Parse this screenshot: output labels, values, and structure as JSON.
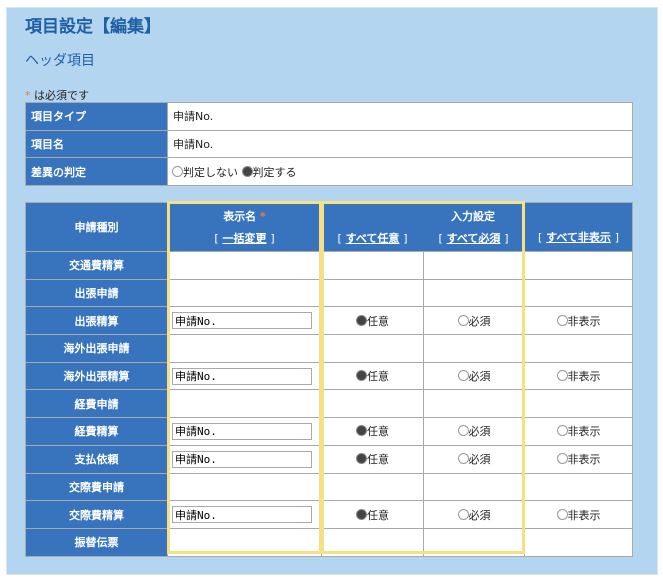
{
  "page_title": "項目設定【編集】",
  "section_title": "ヘッダ項目",
  "required_note": {
    "mark": "*",
    "text": "は必須です"
  },
  "header_fields": [
    {
      "label": "項目タイプ",
      "value": "申請No."
    },
    {
      "label": "項目名",
      "value": "申請No."
    },
    {
      "label": "差異の判定",
      "options": [
        {
          "label": "判定しない",
          "selected": false
        },
        {
          "label": "判定する",
          "selected": true
        }
      ]
    }
  ],
  "grid": {
    "col_type": "申請種別",
    "col_display": "表示名",
    "col_display_required": "*",
    "bulk_change": "一括変更",
    "col_input": "入力設定",
    "all_optional": "すべて任意",
    "all_required": "すべて必須",
    "all_hidden": "すべて非表示",
    "bracket_open": "[",
    "bracket_close": "]",
    "opt_optional": "任意",
    "opt_required": "必須",
    "opt_hidden": "非表示",
    "rows": [
      {
        "type": "交通費精算"
      },
      {
        "type": "出張申請"
      },
      {
        "type": "出張精算",
        "display": "申請No.",
        "setting": "任意"
      },
      {
        "type": "海外出張申請"
      },
      {
        "type": "海外出張精算",
        "display": "申請No.",
        "setting": "任意"
      },
      {
        "type": "経費申請"
      },
      {
        "type": "経費精算",
        "display": "申請No.",
        "setting": "任意"
      },
      {
        "type": "支払依頼",
        "display": "申請No.",
        "setting": "任意"
      },
      {
        "type": "交際費申請"
      },
      {
        "type": "交際費精算",
        "display": "申請No.",
        "setting": "任意"
      },
      {
        "type": "振替伝票"
      }
    ]
  },
  "colors": {
    "header_blue": "#3874bd",
    "panel": "#b4d5ef",
    "highlight": "#f7df86",
    "title": "#1f5fa6"
  }
}
